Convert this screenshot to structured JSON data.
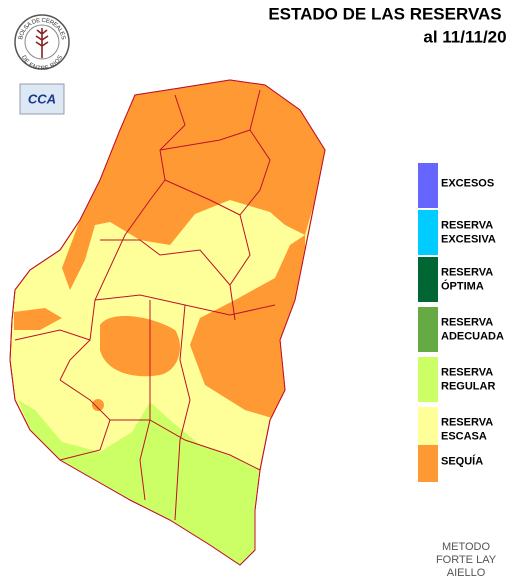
{
  "header": {
    "title": "ESTADO DE LAS RESERVAS",
    "date": "al 11/11/20"
  },
  "logo": {
    "top": "BOLSA DE CEREALES",
    "bottom": "DE ENTRE RIOS"
  },
  "badge": "CCA",
  "legend": [
    {
      "lines": [
        "EXCESOS"
      ],
      "color": "#6666ff"
    },
    {
      "lines": [
        "RESERVA",
        "EXCESIVA"
      ],
      "color": "#00ccff"
    },
    {
      "lines": [
        "RESERVA",
        "ÓPTIMA"
      ],
      "color": "#006633"
    },
    {
      "lines": [
        "RESERVA",
        "ADECUADA"
      ],
      "color": "#66aa44"
    },
    {
      "lines": [
        "RESERVA",
        "REGULAR"
      ],
      "color": "#ccff66"
    },
    {
      "lines": [
        "RESERVA",
        "ESCASA"
      ],
      "color": "#ffff99"
    },
    {
      "lines": [
        "SEQUÍA"
      ],
      "color": "#ff9933"
    }
  ],
  "method": [
    "METODO",
    "FORTE LAY",
    "AIELLO"
  ]
}
